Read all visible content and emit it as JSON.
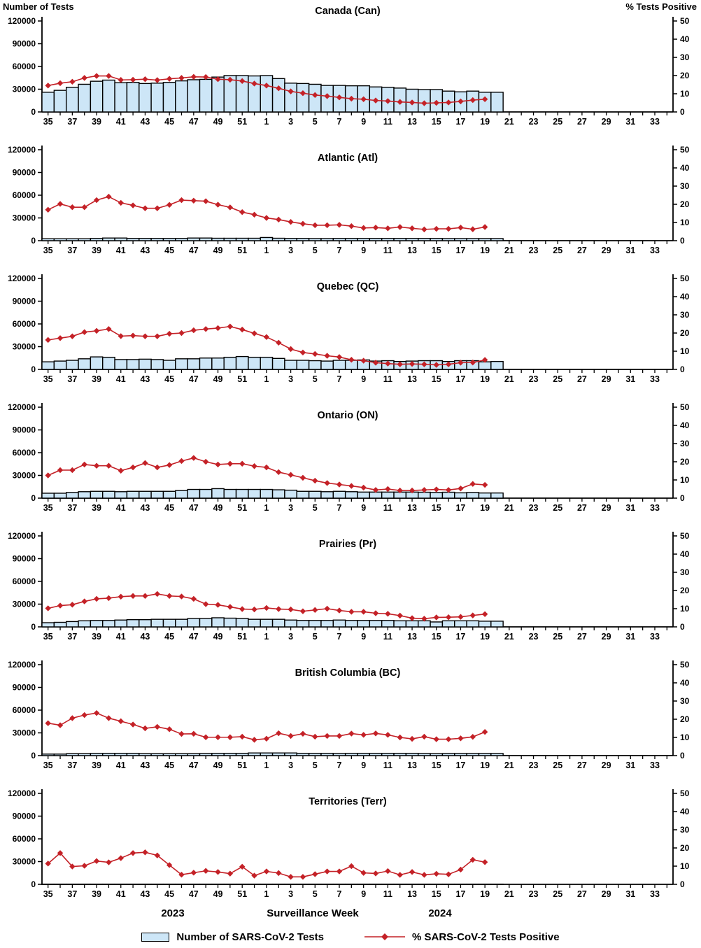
{
  "header": {
    "left_axis_title": "Number of Tests",
    "right_axis_title": "% Tests Positive"
  },
  "footer": {
    "year_left": "2023",
    "axis_title": "Surveillance Week",
    "year_right": "2024"
  },
  "legend": {
    "tests_label": "Number of SARS-CoV-2 Tests",
    "pct_label": "% SARS-CoV-2 Tests Positive"
  },
  "colors": {
    "bar_fill": "#CDE6F7",
    "bar_stroke": "#000000",
    "line": "#C42127"
  },
  "chart_data": {
    "type": "bar+line",
    "x_axis_note": "Surveillance weeks 35-52 of 2023 followed by weeks 1-34 of 2024; bars and line plotted through week 20/19 of 2024",
    "week_sequence": [
      35,
      36,
      37,
      38,
      39,
      40,
      41,
      42,
      43,
      44,
      45,
      46,
      47,
      48,
      49,
      50,
      51,
      52,
      1,
      2,
      3,
      4,
      5,
      6,
      7,
      8,
      9,
      10,
      11,
      12,
      13,
      14,
      15,
      16,
      17,
      18,
      19,
      20,
      21,
      22,
      23,
      24,
      25,
      26,
      27,
      28,
      29,
      30,
      31,
      32,
      33,
      34
    ],
    "x_tick_labels": [
      35,
      37,
      39,
      41,
      43,
      45,
      47,
      49,
      51,
      1,
      3,
      5,
      7,
      9,
      11,
      13,
      15,
      17,
      19,
      21,
      23,
      25,
      27,
      29,
      31,
      33
    ],
    "left_axis": {
      "label": "Number of Tests",
      "min": 0,
      "max": 120000,
      "ticks": [
        0,
        30000,
        60000,
        90000,
        120000
      ]
    },
    "right_axis": {
      "label": "% Tests Positive",
      "min": 0,
      "max": 50,
      "ticks": [
        0,
        10,
        20,
        30,
        40,
        50
      ]
    },
    "panels": [
      {
        "title": "Canada (Can)",
        "tests": [
          26000,
          28500,
          32500,
          36500,
          40500,
          42000,
          38500,
          39000,
          37500,
          38000,
          39000,
          41000,
          42500,
          43000,
          46000,
          48000,
          48000,
          47500,
          48000,
          44000,
          38000,
          37500,
          36500,
          35000,
          35000,
          34500,
          34500,
          33000,
          32500,
          31500,
          30000,
          29500,
          29500,
          27500,
          26500,
          27500,
          26000,
          26000
        ],
        "pct_positive": [
          14.5,
          15.8,
          16.6,
          18.7,
          19.8,
          19.8,
          17.6,
          17.7,
          18.0,
          17.5,
          18.2,
          18.7,
          19.3,
          19.2,
          18.0,
          17.7,
          17.0,
          15.6,
          14.5,
          13.0,
          11.3,
          10.3,
          9.3,
          8.7,
          8.0,
          7.3,
          7.0,
          6.3,
          6.0,
          5.5,
          5.2,
          4.8,
          5.0,
          5.2,
          5.8,
          6.5,
          7.0,
          null
        ]
      },
      {
        "title": "Atlantic (Atl)",
        "tests": [
          2500,
          2500,
          2500,
          2500,
          3000,
          3500,
          3500,
          3000,
          3000,
          3000,
          3000,
          3000,
          3500,
          3500,
          3200,
          3200,
          3200,
          3200,
          4200,
          3200,
          3000,
          3000,
          2800,
          2800,
          3000,
          3000,
          3000,
          3000,
          3000,
          3000,
          3000,
          3000,
          3000,
          2800,
          2800,
          2800,
          2800,
          2800
        ],
        "pct_positive": [
          17.0,
          20.2,
          18.4,
          18.4,
          22.3,
          24.2,
          20.8,
          19.4,
          17.8,
          17.8,
          19.7,
          22.3,
          22.0,
          21.7,
          19.8,
          18.3,
          15.7,
          14.3,
          12.5,
          11.6,
          10.3,
          9.3,
          8.5,
          8.5,
          8.7,
          8.0,
          7.0,
          7.2,
          6.8,
          7.5,
          6.8,
          6.2,
          6.5,
          6.5,
          7.2,
          6.3,
          7.5,
          null
        ]
      },
      {
        "title": "Quebec (QC)",
        "tests": [
          10000,
          11000,
          12000,
          14000,
          16500,
          16000,
          13000,
          13000,
          13500,
          13000,
          12000,
          14000,
          14000,
          15000,
          15000,
          16000,
          17000,
          16000,
          16000,
          14500,
          12000,
          12000,
          11500,
          11000,
          12000,
          12000,
          12500,
          11000,
          11500,
          10500,
          11000,
          11500,
          11500,
          10500,
          11500,
          11500,
          10000,
          10500
        ],
        "pct_positive": [
          16.2,
          17.2,
          18.2,
          20.5,
          21.2,
          22.2,
          18.3,
          18.6,
          18.2,
          18.2,
          19.6,
          20.0,
          21.5,
          22.2,
          22.7,
          23.6,
          21.9,
          19.8,
          17.8,
          14.7,
          11.2,
          9.3,
          8.5,
          7.5,
          6.8,
          5.3,
          4.8,
          3.7,
          3.2,
          2.8,
          3.0,
          2.8,
          2.5,
          2.8,
          3.7,
          3.8,
          5.2,
          null
        ]
      },
      {
        "title": "Ontario (ON)",
        "tests": [
          6500,
          6500,
          7500,
          8500,
          9000,
          9000,
          8500,
          9000,
          9000,
          9000,
          9000,
          10000,
          11500,
          11500,
          12500,
          11500,
          11500,
          11500,
          11500,
          11000,
          10500,
          9000,
          9000,
          8500,
          9000,
          8500,
          8000,
          8000,
          8000,
          8000,
          8000,
          7800,
          7500,
          7800,
          7000,
          7500,
          6800,
          6800
        ],
        "pct_positive": [
          12.5,
          15.4,
          15.4,
          18.5,
          17.8,
          17.8,
          15.1,
          16.9,
          19.3,
          16.9,
          18.2,
          20.4,
          22.1,
          20.0,
          18.5,
          18.9,
          18.9,
          17.6,
          16.9,
          14.3,
          12.8,
          11.2,
          9.6,
          8.3,
          7.5,
          6.7,
          5.8,
          4.5,
          5.0,
          4.2,
          4.2,
          4.5,
          4.8,
          4.5,
          5.3,
          7.8,
          7.3,
          null
        ]
      },
      {
        "title": "Prairies (Pr)",
        "tests": [
          5500,
          6000,
          7000,
          8000,
          8500,
          8500,
          9000,
          9500,
          9500,
          10000,
          10000,
          10000,
          11000,
          11000,
          12000,
          11500,
          11000,
          10000,
          10000,
          10000,
          9000,
          8500,
          8500,
          8500,
          9000,
          8500,
          8500,
          8500,
          8500,
          8000,
          8000,
          8000,
          6500,
          8000,
          8000,
          8000,
          7500,
          7500
        ],
        "pct_positive": [
          10.2,
          11.7,
          12.2,
          14.0,
          15.4,
          15.8,
          16.6,
          17.0,
          17.0,
          18.1,
          17.0,
          16.7,
          15.4,
          12.5,
          12.1,
          11.0,
          9.8,
          9.6,
          10.4,
          9.8,
          9.6,
          8.6,
          9.3,
          10.0,
          9.0,
          8.3,
          8.3,
          7.5,
          7.2,
          6.2,
          4.8,
          4.5,
          5.2,
          5.3,
          5.5,
          6.3,
          7.0,
          null
        ]
      },
      {
        "title": "British Columbia (BC)",
        "tests": [
          2000,
          2000,
          2500,
          2500,
          3000,
          3000,
          3000,
          3000,
          2500,
          2500,
          2500,
          2500,
          2500,
          2800,
          3000,
          3000,
          3000,
          3500,
          3500,
          3500,
          3500,
          3000,
          3000,
          3000,
          2800,
          3000,
          3000,
          3000,
          3000,
          3000,
          3000,
          2800,
          2500,
          2800,
          2800,
          2800,
          2800,
          2800
        ],
        "pct_positive": [
          17.8,
          16.7,
          20.6,
          22.3,
          23.4,
          20.6,
          18.9,
          17.1,
          15.0,
          15.8,
          14.5,
          11.9,
          12.0,
          10.1,
          10.1,
          10.1,
          10.4,
          8.7,
          9.3,
          12.3,
          10.8,
          12.0,
          10.4,
          10.8,
          10.8,
          12.1,
          11.4,
          12.2,
          11.4,
          10.0,
          9.2,
          10.4,
          9.0,
          9.0,
          9.5,
          10.3,
          13.0,
          null
        ]
      },
      {
        "title": "Territories (Terr)",
        "tests": [
          300,
          300,
          300,
          300,
          300,
          300,
          300,
          300,
          300,
          300,
          300,
          300,
          300,
          300,
          300,
          300,
          300,
          300,
          300,
          300,
          300,
          300,
          300,
          300,
          300,
          300,
          300,
          300,
          300,
          300,
          300,
          300,
          300,
          300,
          300,
          300,
          300,
          300
        ],
        "pct_positive": [
          11.4,
          17.2,
          9.8,
          10.2,
          12.8,
          12.1,
          14.4,
          17.2,
          17.6,
          15.9,
          10.6,
          5.3,
          6.4,
          7.4,
          6.8,
          5.9,
          9.7,
          4.8,
          7.1,
          6.2,
          4.1,
          4.1,
          5.6,
          7.1,
          7.1,
          10.0,
          6.3,
          6.0,
          7.3,
          5.2,
          6.8,
          5.2,
          5.8,
          5.5,
          8.1,
          13.5,
          12.2,
          null
        ]
      }
    ]
  }
}
